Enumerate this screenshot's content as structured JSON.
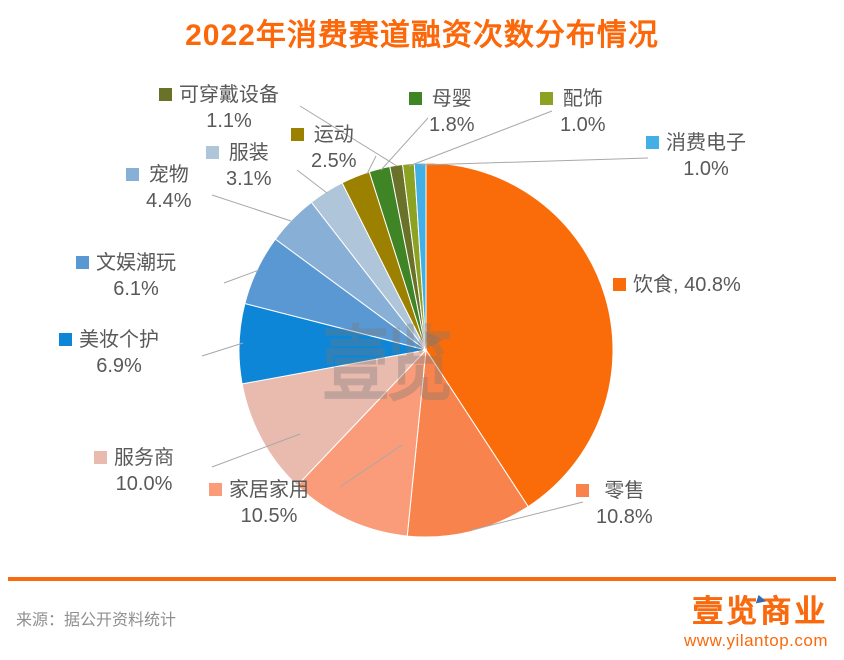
{
  "title": "2022年消费赛道融资次数分布情况",
  "source": "来源：据公开资料统计",
  "watermark": {
    "text": "壹览"
  },
  "footer": {
    "brand": "壹览商业",
    "url": "www.yilantop.com"
  },
  "colors": {
    "title": "#FB6709",
    "accent": "#F86A0D",
    "label_text": "#595959",
    "leader_line": "#A8A8A8",
    "brand_flag": "#2E6DB4"
  },
  "chart_data": {
    "type": "pie",
    "title": "2022年消费赛道融资次数分布情况",
    "unit": "%",
    "start_angle": "top, clockwise",
    "legend_position": "callout-labels",
    "segments": [
      {
        "label": "饮食",
        "value": 40.8,
        "color": "#FA6C0A",
        "display": "饮食, 40.8%"
      },
      {
        "label": "零售",
        "value": 10.8,
        "color": "#F8834C",
        "display": "零售 10.8%"
      },
      {
        "label": "家居家用",
        "value": 10.5,
        "color": "#FA9C79",
        "display": "家居家用 10.5%"
      },
      {
        "label": "服务商",
        "value": 10.0,
        "color": "#E9BAAE",
        "display": "服务商 10.0%"
      },
      {
        "label": "美妆个护",
        "value": 6.9,
        "color": "#0E86D7",
        "display": "美妆个护 6.9%"
      },
      {
        "label": "文娱潮玩",
        "value": 6.1,
        "color": "#5A98D3",
        "display": "文娱潮玩 6.1%"
      },
      {
        "label": "宠物",
        "value": 4.4,
        "color": "#88B0D6",
        "display": "宠物 4.4%"
      },
      {
        "label": "服装",
        "value": 3.1,
        "color": "#AFC5DA",
        "display": "服装 3.1%"
      },
      {
        "label": "运动",
        "value": 2.5,
        "color": "#9C8000",
        "display": "运动 2.5%"
      },
      {
        "label": "母婴",
        "value": 1.8,
        "color": "#3F8526",
        "display": "母婴 1.8%"
      },
      {
        "label": "可穿戴设备",
        "value": 1.1,
        "color": "#6A722A",
        "display": "可穿戴设备 1.1%"
      },
      {
        "label": "配饰",
        "value": 1.0,
        "color": "#8CA223",
        "display": "配饰 1.0%"
      },
      {
        "label": "消费电子",
        "value": 1.0,
        "color": "#42B0E4",
        "display": "消费电子 1.0%"
      }
    ]
  }
}
